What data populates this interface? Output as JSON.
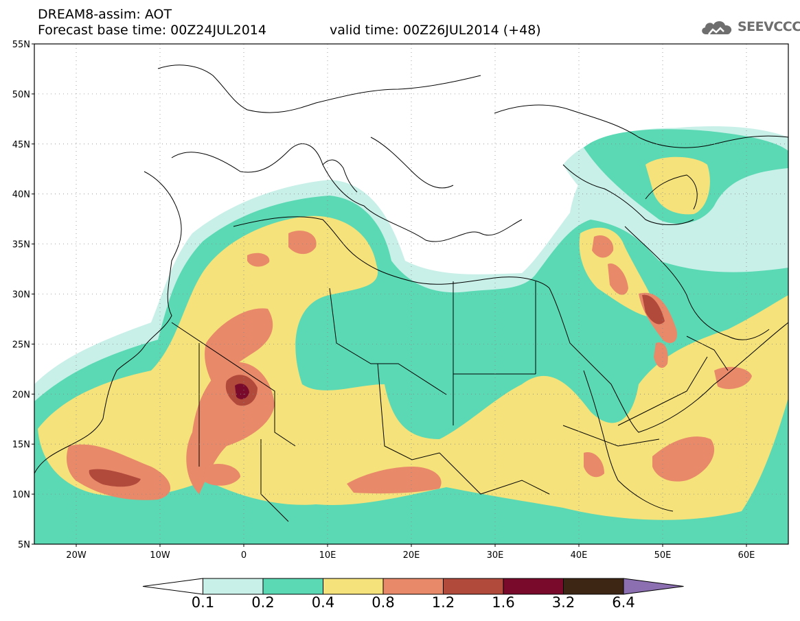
{
  "header": {
    "title_line1": "DREAM8-assim: AOT",
    "title_line2": "Forecast base time: 00Z24JUL2014",
    "valid_time": "valid time: 00Z26JUL2014 (+48)",
    "logo_text": "SEEVCCC",
    "logo_icon": "cloud-icon"
  },
  "map": {
    "projection": "equirectangular",
    "lon_range": [
      -25,
      65
    ],
    "lat_range": [
      5,
      55
    ],
    "lat_labels": [
      "55N",
      "50N",
      "45N",
      "40N",
      "35N",
      "30N",
      "25N",
      "20N",
      "15N",
      "10N",
      "5N"
    ],
    "lat_values": [
      55,
      50,
      45,
      40,
      35,
      30,
      25,
      20,
      15,
      10,
      5
    ],
    "lon_labels": [
      "20W",
      "10W",
      "0",
      "10E",
      "20E",
      "30E",
      "40E",
      "50E",
      "60E"
    ],
    "lon_values": [
      -20,
      -10,
      0,
      10,
      20,
      30,
      40,
      50,
      60
    ],
    "grid": "dotted"
  },
  "legend": {
    "labels": [
      "0.1",
      "0.2",
      "0.4",
      "0.8",
      "1.2",
      "1.6",
      "3.2",
      "6.4"
    ],
    "colors": [
      "#ffffff",
      "#c8f0e8",
      "#5ad9b4",
      "#f5e27a",
      "#e8896a",
      "#b24a3c",
      "#7a0a2c",
      "#3e2614",
      "#8c6fb0"
    ]
  }
}
